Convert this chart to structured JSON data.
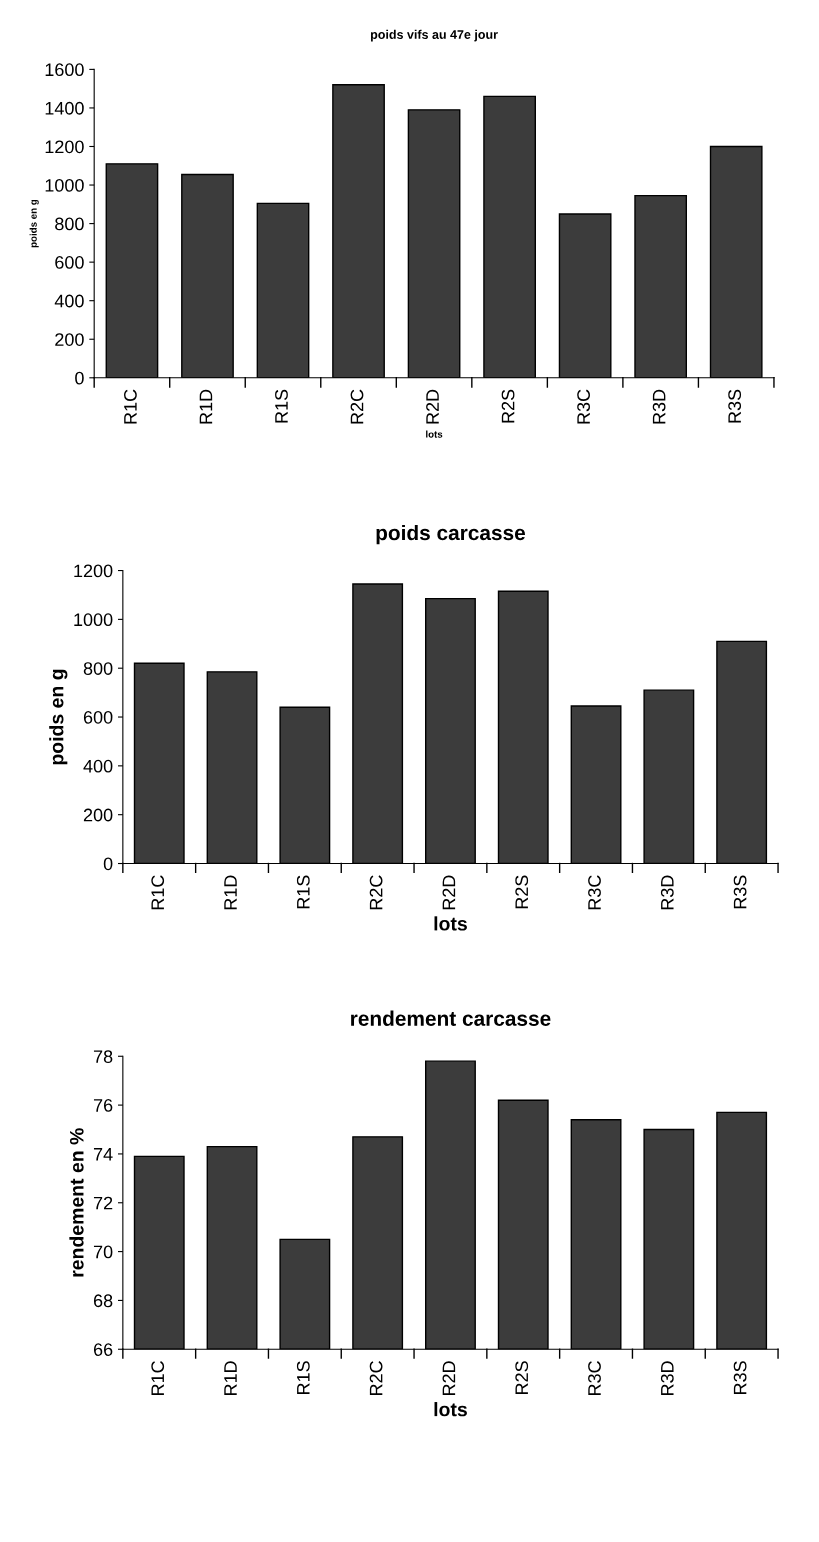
{
  "chart_data": [
    {
      "type": "bar",
      "title": "poids vifs au 47e jour",
      "xlabel": "lots",
      "ylabel": "poids en g",
      "categories": [
        "R1C",
        "R1D",
        "R1S",
        "R2C",
        "R2D",
        "R2S",
        "R3C",
        "R3D",
        "R3S"
      ],
      "values": [
        1110,
        1055,
        905,
        1520,
        1390,
        1460,
        850,
        945,
        1200
      ],
      "color": "#3c3c3c",
      "ylim": [
        0,
        1600
      ],
      "yticks": [
        0,
        200,
        400,
        600,
        800,
        1000,
        1200,
        1400,
        1600
      ],
      "grid": false,
      "legend": false
    },
    {
      "type": "bar",
      "title": "poids carcasse",
      "xlabel": "lots",
      "ylabel": "poids en g",
      "categories": [
        "R1C",
        "R1D",
        "R1S",
        "R2C",
        "R2D",
        "R2S",
        "R3C",
        "R3D",
        "R3S"
      ],
      "values": [
        820,
        785,
        640,
        1145,
        1085,
        1115,
        645,
        710,
        910
      ],
      "color": "#3c3c3c",
      "ylim": [
        0,
        1200
      ],
      "yticks": [
        0,
        200,
        400,
        600,
        800,
        1000,
        1200
      ],
      "grid": false,
      "legend": false
    },
    {
      "type": "bar",
      "title": "rendement carcasse",
      "xlabel": "lots",
      "ylabel": "rendement en %",
      "categories": [
        "R1C",
        "R1D",
        "R1S",
        "R2C",
        "R2D",
        "R2S",
        "R3C",
        "R3D",
        "R3S"
      ],
      "values": [
        73.9,
        74.3,
        70.5,
        74.7,
        77.8,
        76.2,
        75.4,
        75.0,
        75.7
      ],
      "color": "#3c3c3c",
      "ylim": [
        66,
        78
      ],
      "yticks": [
        66,
        68,
        70,
        72,
        74,
        76,
        78
      ],
      "grid": false,
      "legend": false
    }
  ]
}
